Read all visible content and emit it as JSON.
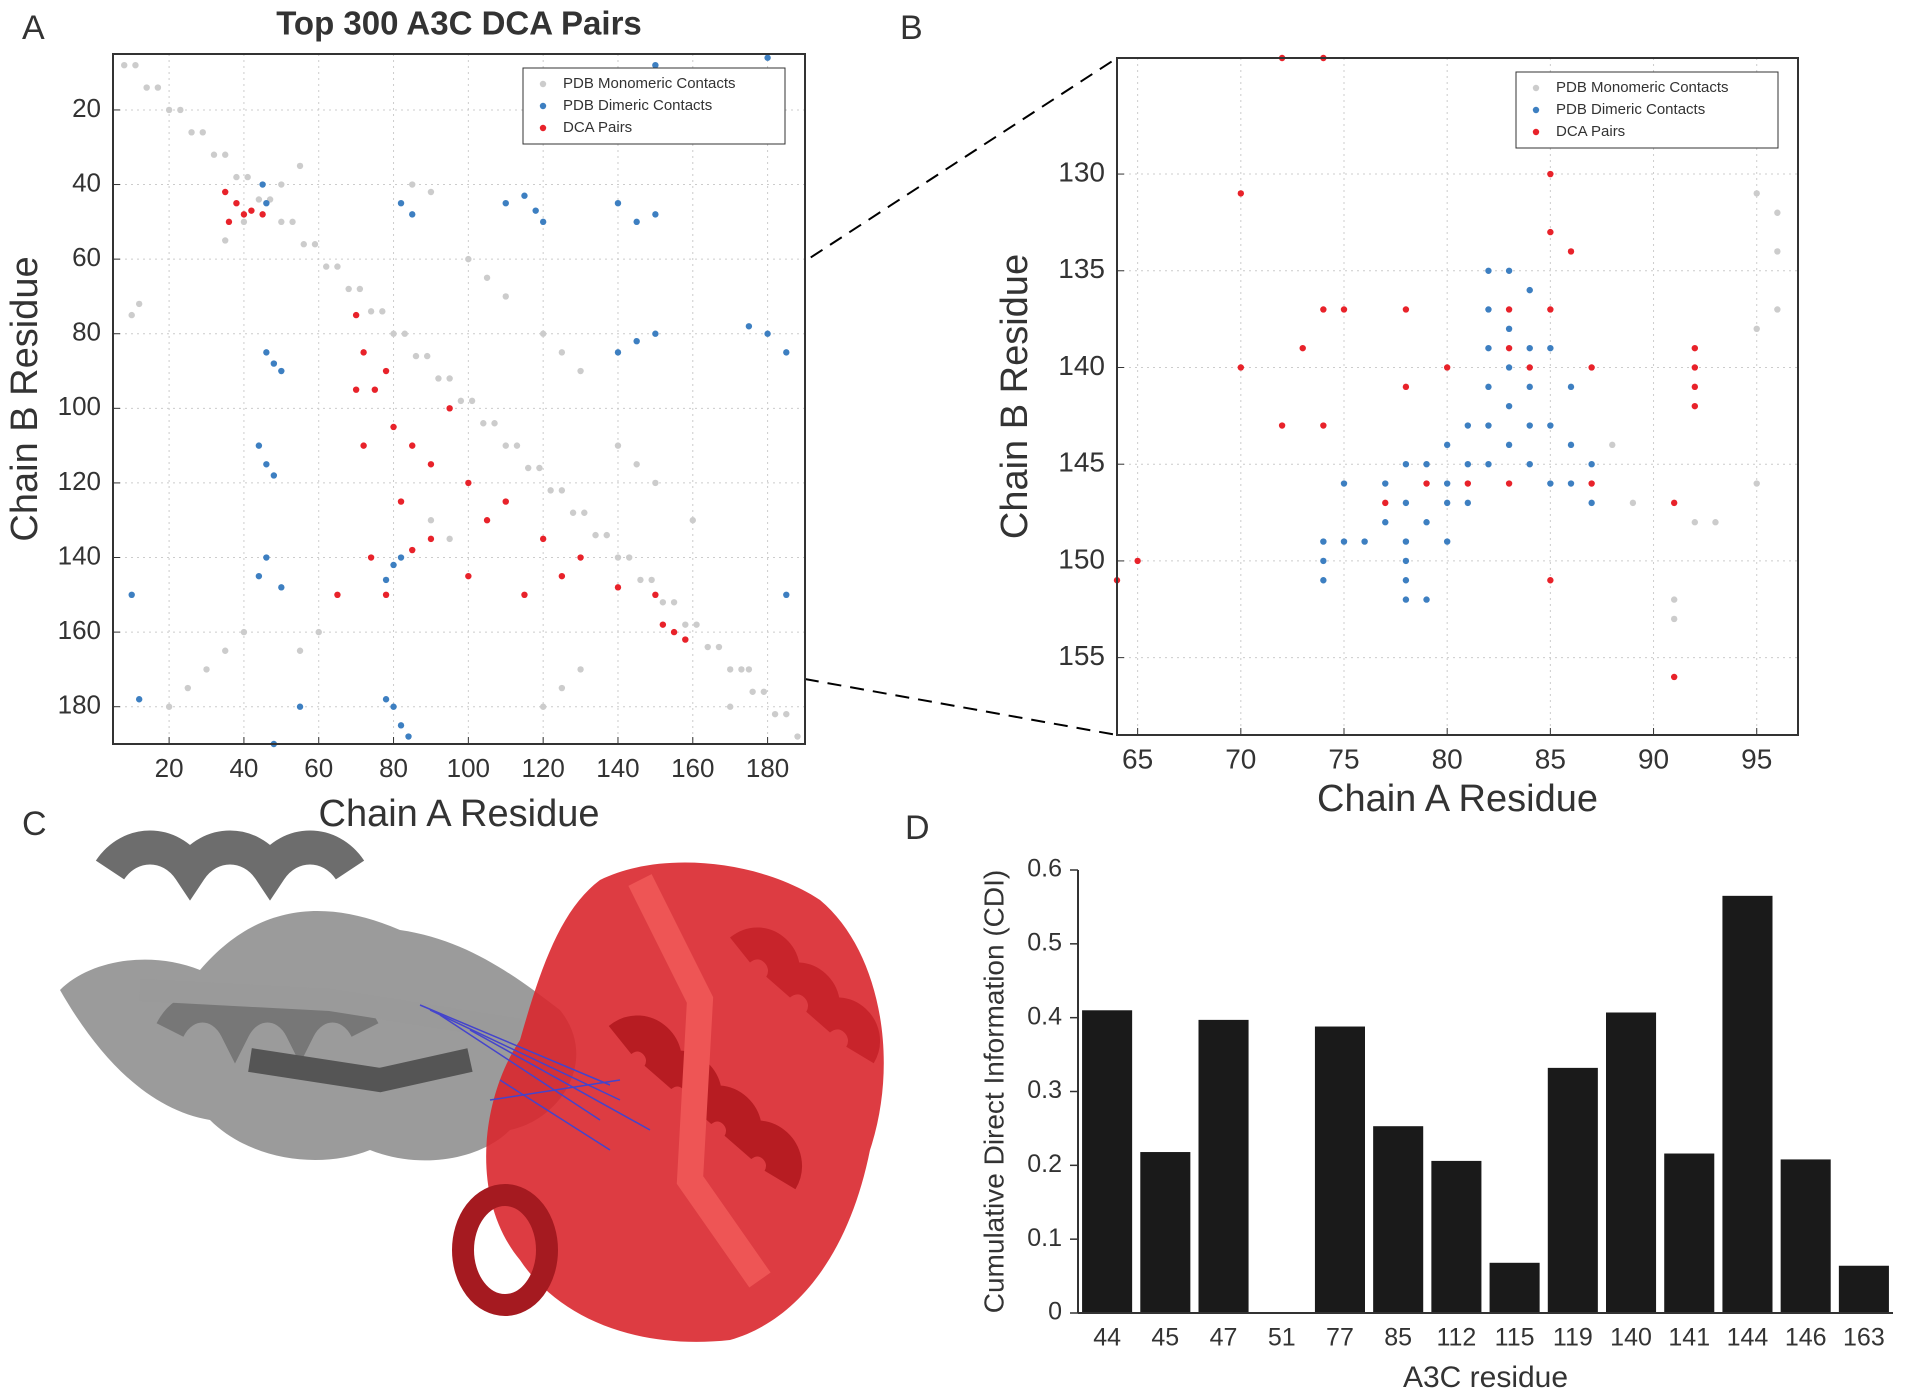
{
  "panel_labels": [
    "A",
    "B",
    "C",
    "D"
  ],
  "chart_data": [
    {
      "type": "scatter",
      "title": "Top 300 A3C DCA Pairs",
      "x_label": "Chain A Residue",
      "y_label": "Chain B Residue",
      "xlim": [
        5,
        190
      ],
      "ylim": [
        190,
        5
      ],
      "xticks": [
        20,
        40,
        60,
        80,
        100,
        120,
        140,
        160,
        180
      ],
      "yticks": [
        20,
        40,
        60,
        80,
        100,
        120,
        140,
        160,
        180
      ],
      "grid": true,
      "legend": "upper right",
      "series": [
        {
          "name": "PDB Monomeric Contacts",
          "color": "#cccccc",
          "x": [
            8,
            14,
            20,
            26,
            32,
            38,
            44,
            50,
            56,
            62,
            68,
            74,
            80,
            86,
            92,
            98,
            104,
            110,
            116,
            122,
            128,
            134,
            140,
            146,
            152,
            158,
            164,
            170,
            176,
            182,
            188,
            11,
            17,
            23,
            29,
            35,
            41,
            47,
            53,
            59,
            65,
            71,
            77,
            83,
            89,
            95,
            101,
            107,
            113,
            119,
            125,
            131,
            137,
            143,
            149,
            155,
            161,
            167,
            173,
            179,
            185,
            35,
            40,
            50,
            55,
            10,
            12,
            85,
            90,
            100,
            105,
            110,
            120,
            125,
            130,
            140,
            145,
            150,
            160,
            20,
            25,
            30,
            35,
            40,
            120,
            125,
            130,
            170,
            175,
            60,
            55,
            90,
            95
          ],
          "values": [
            8,
            14,
            20,
            26,
            32,
            38,
            44,
            50,
            56,
            62,
            68,
            74,
            80,
            86,
            92,
            98,
            104,
            110,
            116,
            122,
            128,
            134,
            140,
            146,
            152,
            158,
            164,
            170,
            176,
            182,
            188,
            8,
            14,
            20,
            26,
            32,
            38,
            44,
            50,
            56,
            62,
            68,
            74,
            80,
            86,
            92,
            98,
            104,
            110,
            116,
            122,
            128,
            134,
            140,
            146,
            152,
            158,
            164,
            170,
            176,
            182,
            55,
            50,
            40,
            35,
            75,
            72,
            40,
            42,
            60,
            65,
            70,
            80,
            85,
            90,
            110,
            115,
            120,
            130,
            180,
            175,
            170,
            165,
            160,
            180,
            175,
            170,
            180,
            170,
            160,
            165,
            130,
            135
          ]
        },
        {
          "name": "PDB Dimeric Contacts",
          "color": "#3d7fc1",
          "x": [
            45,
            46,
            82,
            85,
            115,
            118,
            110,
            120,
            140,
            145,
            150,
            145,
            140,
            150,
            180,
            185,
            175,
            48,
            46,
            50,
            46,
            44,
            48,
            46,
            44,
            50,
            80,
            82,
            78,
            80,
            82,
            78,
            84,
            10,
            12,
            48,
            150,
            180,
            185,
            55
          ],
          "values": [
            40,
            45,
            45,
            48,
            43,
            47,
            45,
            50,
            45,
            50,
            48,
            82,
            85,
            80,
            80,
            85,
            78,
            88,
            85,
            90,
            115,
            110,
            118,
            140,
            145,
            148,
            142,
            140,
            146,
            180,
            185,
            178,
            188,
            150,
            178,
            190,
            8,
            6,
            150,
            180
          ]
        },
        {
          "name": "DCA Pairs",
          "color": "#e8222a",
          "x": [
            35,
            38,
            40,
            42,
            36,
            45,
            70,
            72,
            75,
            80,
            85,
            90,
            70,
            78,
            95,
            100,
            110,
            105,
            120,
            130,
            140,
            150,
            155,
            158,
            152,
            65,
            74,
            85,
            78,
            100,
            115,
            125,
            72,
            82,
            90
          ],
          "values": [
            42,
            45,
            48,
            47,
            50,
            48,
            75,
            85,
            95,
            105,
            110,
            115,
            95,
            90,
            100,
            120,
            125,
            130,
            135,
            140,
            148,
            150,
            160,
            162,
            158,
            150,
            140,
            138,
            150,
            145,
            150,
            145,
            110,
            125,
            135
          ]
        }
      ]
    },
    {
      "type": "scatter",
      "x_label": "Chain A Residue",
      "y_label": "Chain B Residue",
      "xlim": [
        64,
        97
      ],
      "ylim": [
        159,
        124
      ],
      "xticks": [
        65,
        70,
        75,
        80,
        85,
        90,
        95
      ],
      "yticks": [
        130,
        135,
        140,
        145,
        150,
        155
      ],
      "grid": true,
      "legend": "upper right",
      "series": [
        {
          "name": "PDB Monomeric Contacts",
          "color": "#cccccc",
          "x": [
            88,
            89,
            95,
            95,
            95,
            93,
            92,
            91,
            91,
            96,
            96,
            96
          ],
          "values": [
            144,
            147,
            138,
            131,
            146,
            148,
            148,
            152,
            153,
            132,
            134,
            137
          ]
        },
        {
          "name": "PDB Dimeric Contacts",
          "color": "#3d7fc1",
          "x": [
            75,
            75,
            74,
            74,
            74,
            76,
            77,
            77,
            78,
            78,
            78,
            78,
            78,
            78,
            79,
            79,
            79,
            80,
            80,
            80,
            80,
            81,
            81,
            81,
            82,
            82,
            82,
            82,
            82,
            82,
            83,
            83,
            83,
            83,
            83,
            84,
            84,
            84,
            84,
            84,
            85,
            85,
            85,
            86,
            86,
            86,
            87,
            87
          ],
          "values": [
            146,
            149,
            149,
            150,
            151,
            149,
            146,
            148,
            145,
            147,
            149,
            150,
            151,
            152,
            145,
            148,
            152,
            144,
            146,
            147,
            149,
            143,
            145,
            147,
            135,
            137,
            139,
            141,
            143,
            145,
            135,
            138,
            140,
            142,
            144,
            136,
            139,
            141,
            143,
            145,
            139,
            143,
            146,
            141,
            144,
            146,
            145,
            147
          ]
        },
        {
          "name": "DCA Pairs",
          "color": "#e8222a",
          "x": [
            70,
            72,
            74,
            70,
            74,
            75,
            73,
            72,
            74,
            78,
            78,
            80,
            77,
            79,
            81,
            83,
            84,
            85,
            85,
            85,
            86,
            87,
            87,
            85,
            92,
            92,
            92,
            92,
            91,
            91,
            64,
            65,
            83,
            83
          ],
          "values": [
            131,
            124,
            124,
            140,
            137,
            137,
            139,
            143,
            143,
            137,
            141,
            140,
            147,
            146,
            146,
            146,
            140,
            137,
            130,
            133,
            134,
            140,
            146,
            151,
            139,
            140,
            141,
            142,
            147,
            156,
            151,
            150,
            137,
            139
          ]
        }
      ]
    },
    {
      "type": "bar",
      "x_label": "A3C residue",
      "y_label": "Cumulative Direct Information (CDI)",
      "categories": [
        "44",
        "45",
        "47",
        "51",
        "77",
        "85",
        "112",
        "115",
        "119",
        "140",
        "141",
        "144",
        "146",
        "163"
      ],
      "values": [
        0.41,
        0.218,
        0.397,
        0,
        0.388,
        0.253,
        0.206,
        0.068,
        0.332,
        0.407,
        0.216,
        0.565,
        0.208,
        0.064
      ],
      "color": "#1a1a1a",
      "ylim": [
        0,
        0.6
      ],
      "yticks": [
        0,
        0.1,
        0.2,
        0.3,
        0.4,
        0.5,
        0.6
      ]
    }
  ]
}
